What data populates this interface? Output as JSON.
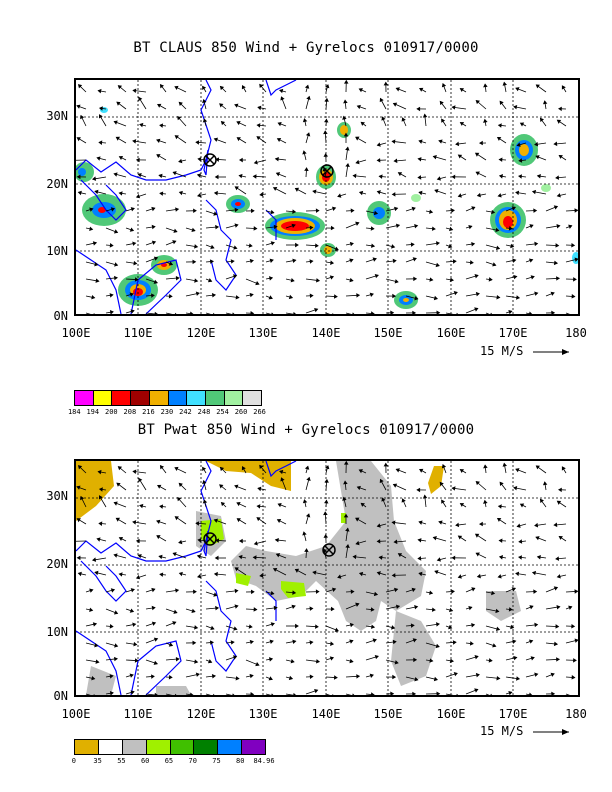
{
  "panels": [
    {
      "title": "BT CLAUS 850 Wind + Gyrelocs 010917/0000",
      "y_labels": [
        "30N",
        "20N",
        "10N",
        "0N"
      ],
      "x_labels": [
        "100E",
        "110E",
        "120E",
        "130E",
        "140E",
        "150E",
        "160E",
        "170E",
        "180"
      ],
      "vector_scale": "15 M/S",
      "colorbar": {
        "colors": [
          "#ff00ff",
          "#ffff00",
          "#ff0000",
          "#a00000",
          "#f0b000",
          "#0080ff",
          "#40e0ff",
          "#50c878",
          "#a0f0a0",
          "#e0e0e0"
        ],
        "ticks": [
          "184",
          "194",
          "200",
          "208",
          "216",
          "230",
          "242",
          "248",
          "254",
          "260",
          "266"
        ]
      }
    },
    {
      "title": "BT Pwat 850 Wind + Gyrelocs 010917/0000",
      "y_labels": [
        "30N",
        "20N",
        "10N",
        "0N"
      ],
      "x_labels": [
        "100E",
        "110E",
        "120E",
        "130E",
        "140E",
        "150E",
        "160E",
        "170E",
        "180"
      ],
      "vector_scale": "15 M/S",
      "colorbar": {
        "colors": [
          "#e0b000",
          "#ffffff",
          "#c0c0c0",
          "#a0f000",
          "#40c000",
          "#008000",
          "#0080ff",
          "#8000c0"
        ],
        "ticks": [
          "0",
          "35",
          "55",
          "60",
          "65",
          "70",
          "75",
          "80",
          "84.96"
        ]
      }
    }
  ],
  "map_extent": {
    "lon": [
      100,
      180
    ],
    "lat": [
      0,
      35
    ]
  },
  "gyre_locations": [
    {
      "lon": 140,
      "lat": 22
    },
    {
      "lon": 121.5,
      "lat": 24
    }
  ]
}
